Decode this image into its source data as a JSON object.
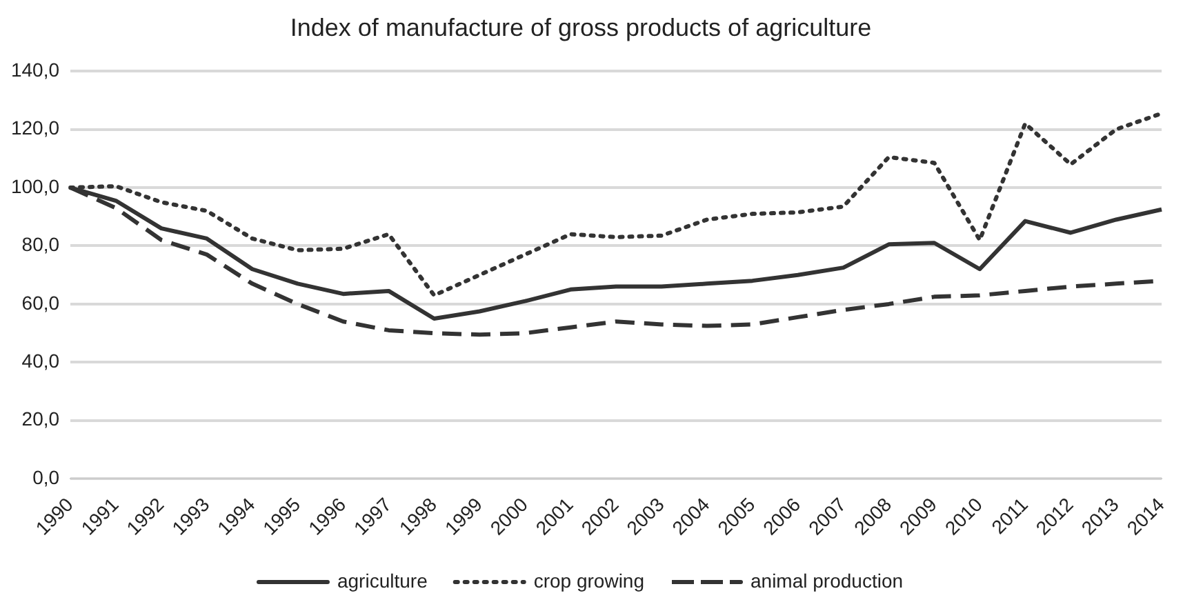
{
  "chart_data": {
    "type": "line",
    "title": "Index of manufacture of gross products of agriculture",
    "categories": [
      "1990",
      "1991",
      "1992",
      "1993",
      "1994",
      "1995",
      "1996",
      "1997",
      "1998",
      "1999",
      "2000",
      "2001",
      "2002",
      "2003",
      "2004",
      "2005",
      "2006",
      "2007",
      "2008",
      "2009",
      "2010",
      "2011",
      "2012",
      "2013",
      "2014"
    ],
    "series": [
      {
        "name": "agriculture",
        "color": "#333333",
        "line_style": "solid",
        "values": [
          100,
          95.5,
          86,
          82.5,
          72,
          67,
          63.5,
          64.5,
          55,
          57.5,
          61,
          65,
          66,
          66,
          67,
          68,
          70,
          72.5,
          80.5,
          81,
          72,
          88.5,
          84.5,
          89,
          92.5
        ]
      },
      {
        "name": "crop growing",
        "color": "#333333",
        "line_style": "dotted",
        "values": [
          100,
          100.5,
          95,
          92,
          82.5,
          78.5,
          79,
          84,
          63,
          70,
          77,
          84,
          83,
          83.5,
          89,
          91,
          91.5,
          93.5,
          110.5,
          108.5,
          82,
          122,
          108,
          120,
          125.5
        ]
      },
      {
        "name": "animal production",
        "color": "#333333",
        "line_style": "dashed",
        "values": [
          100,
          93,
          82,
          77,
          67,
          60,
          54,
          51,
          50,
          49.5,
          50,
          52,
          54,
          53,
          52.5,
          53,
          55.5,
          58,
          60,
          62.5,
          63,
          64.5,
          66,
          67,
          68
        ]
      }
    ],
    "ylim": [
      0,
      140
    ],
    "yticks": [
      {
        "value": 0,
        "label": "0,0"
      },
      {
        "value": 20,
        "label": "20,0"
      },
      {
        "value": 40,
        "label": "40,0"
      },
      {
        "value": 60,
        "label": "60,0"
      },
      {
        "value": 80,
        "label": "80,0"
      },
      {
        "value": 100,
        "label": "100,0"
      },
      {
        "value": 120,
        "label": "120,0"
      },
      {
        "value": 140,
        "label": "140,0"
      }
    ],
    "grid": "y",
    "legend": "bottom",
    "marker": "none"
  }
}
